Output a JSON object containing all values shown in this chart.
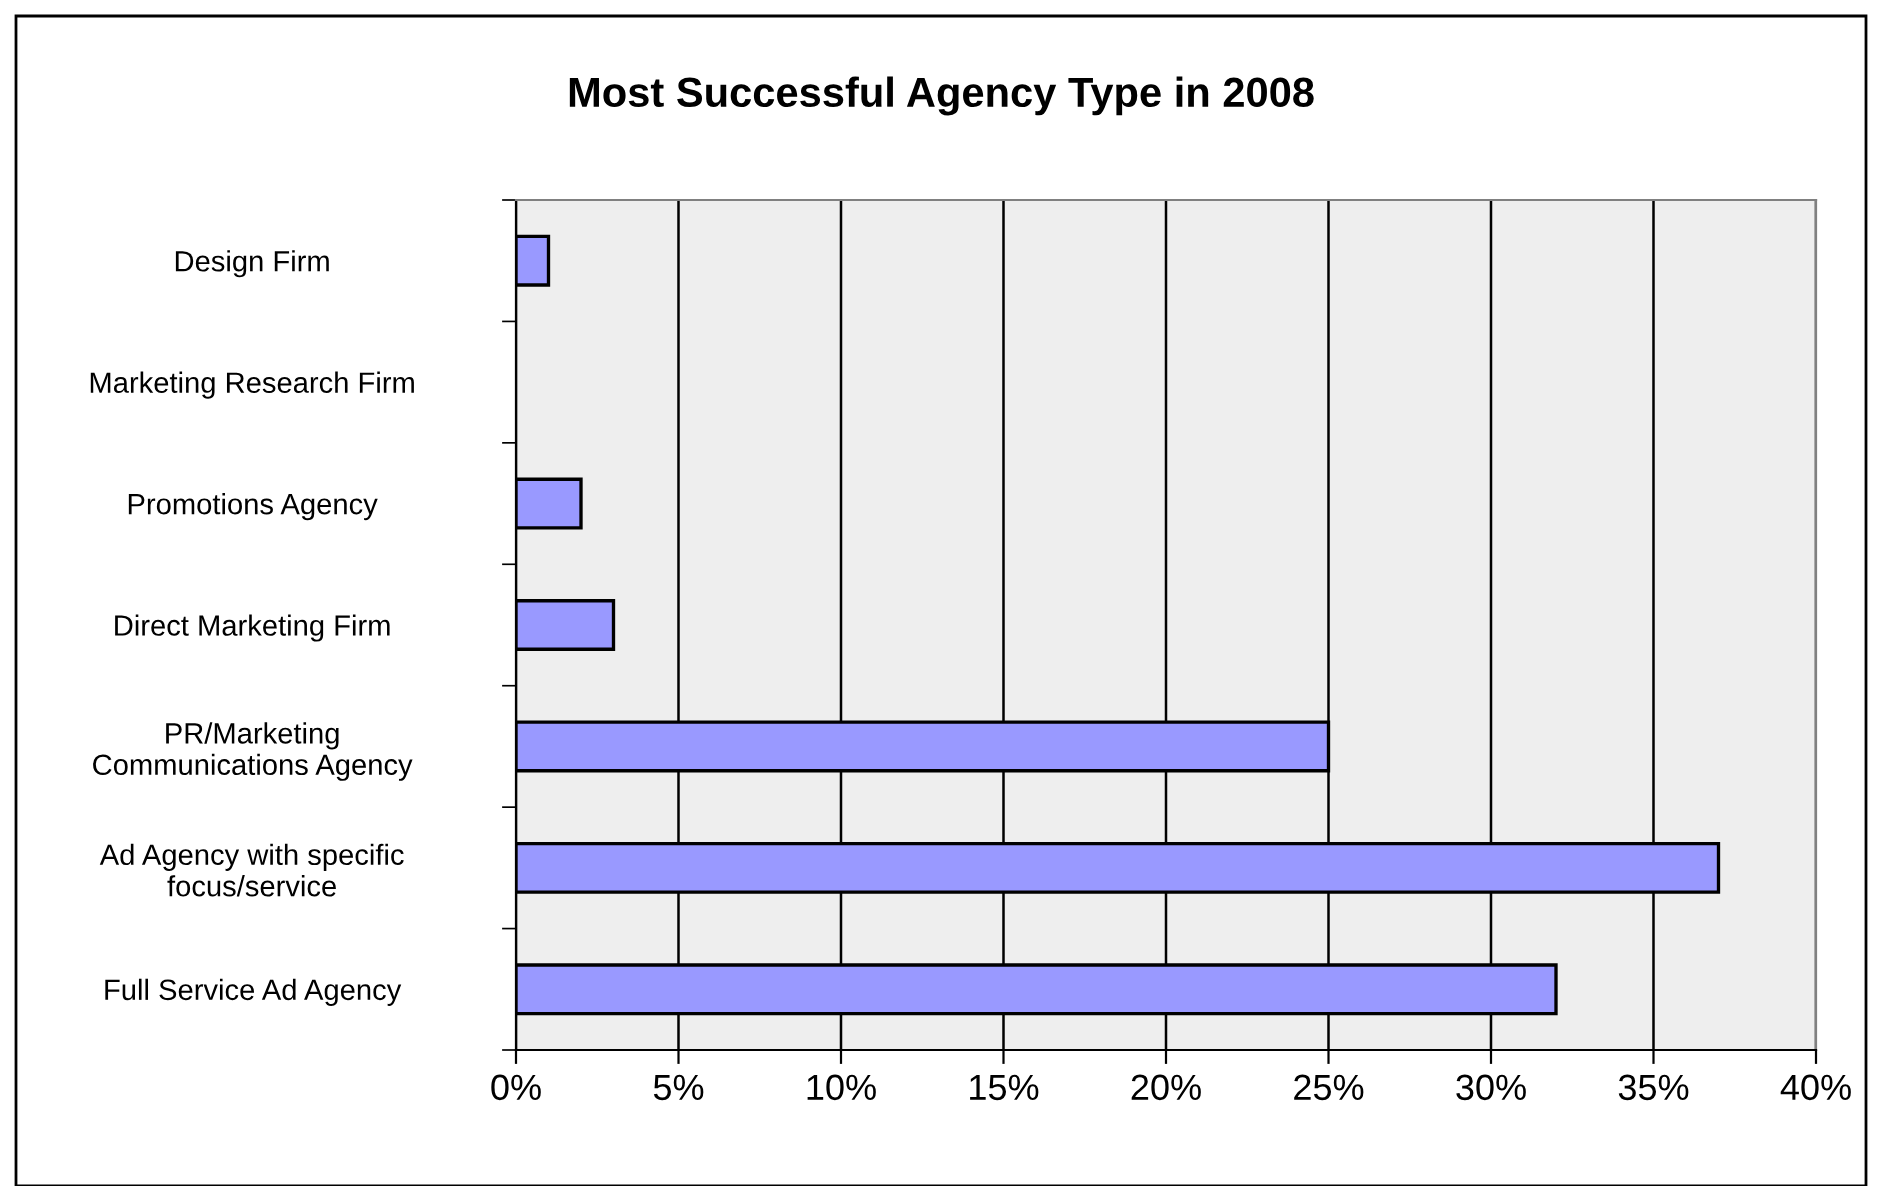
{
  "chart_data": {
    "type": "bar",
    "orientation": "horizontal",
    "title": "Most Successful Agency Type in 2008",
    "categories": [
      "Design Firm",
      "Marketing Research Firm",
      "Promotions Agency",
      "Direct Marketing Firm",
      "PR/Marketing\nCommunications Agency",
      "Ad Agency with specific\nfocus/service",
      "Full Service Ad Agency"
    ],
    "values": [
      1,
      0,
      2,
      3,
      25,
      37,
      32
    ],
    "color": "#9999ff",
    "xlim": [
      0,
      40
    ],
    "xticks": [
      {
        "value": 0,
        "label": "0%"
      },
      {
        "value": 5,
        "label": "5%"
      },
      {
        "value": 10,
        "label": "10%"
      },
      {
        "value": 15,
        "label": "15%"
      },
      {
        "value": 20,
        "label": "20%"
      },
      {
        "value": 25,
        "label": "25%"
      },
      {
        "value": 30,
        "label": "30%"
      },
      {
        "value": 35,
        "label": "35%"
      },
      {
        "value": 40,
        "label": "40%"
      }
    ],
    "grid": "x",
    "legend": false
  }
}
